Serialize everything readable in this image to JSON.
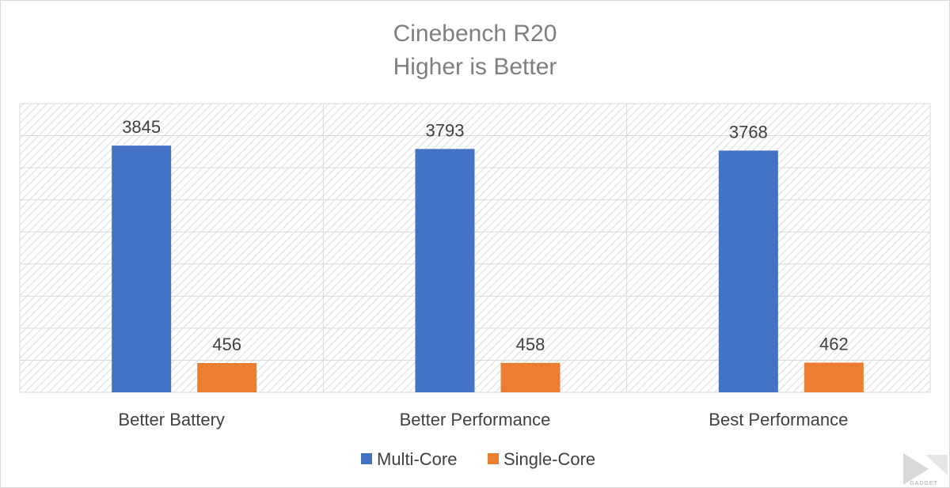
{
  "chart_data": {
    "type": "bar",
    "title": "Cinebench R20",
    "subtitle": "Higher is Better",
    "categories": [
      "Better Battery",
      "Better Performance",
      "Best Performance"
    ],
    "series": [
      {
        "name": "Multi-Core",
        "color": "#4472c4",
        "values": [
          3845,
          3793,
          3768
        ]
      },
      {
        "name": "Single-Core",
        "color": "#ed7d31",
        "values": [
          456,
          458,
          462
        ]
      }
    ],
    "ylim": [
      0,
      4500
    ],
    "ytick_step": 500,
    "grid": true,
    "legend": "bottom-center",
    "xlabel": "",
    "ylabel": ""
  },
  "watermark": {
    "text": "GADGET",
    "icon": "gadget-logo-icon"
  }
}
